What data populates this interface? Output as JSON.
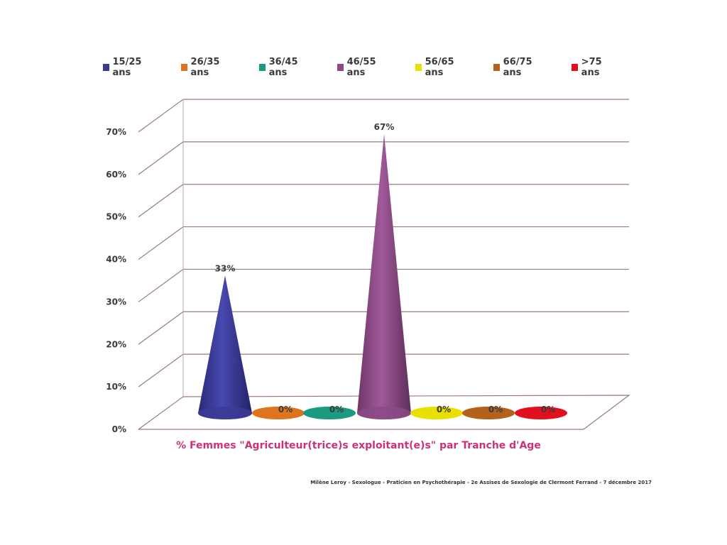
{
  "chart_data": {
    "type": "bar",
    "shape": "cone-3d",
    "categories": [
      "15/25 ans",
      "26/35 ans",
      "36/45 ans",
      "46/55 ans",
      "56/65 ans",
      "66/75 ans",
      ">75 ans"
    ],
    "values": [
      33,
      0,
      0,
      67,
      0,
      0,
      0
    ],
    "data_labels": [
      "33%",
      "0%",
      "0%",
      "67%",
      "0%",
      "0%",
      "0%"
    ],
    "colors": [
      "#3b3b96",
      "#e0741c",
      "#1a9a7e",
      "#8b4a85",
      "#e8e000",
      "#b5611e",
      "#e0101e"
    ],
    "ylim": [
      0,
      70
    ],
    "yticks": [
      0,
      10,
      20,
      30,
      40,
      50,
      60,
      70
    ],
    "ytick_labels": [
      "0%",
      "10%",
      "20%",
      "30%",
      "40%",
      "50%",
      "60%",
      "70%"
    ],
    "xlabel": "% Femmes \"Agriculteur(trice)s exploitant(e)s\" par Tranche d'Age",
    "legend_position": "top",
    "grid": true
  },
  "footer": "Milène Leroy - Sexologue - Praticien en Psychothérapie - 2e Assises de Sexologie de Clermont Ferrand - 7 décembre 2017"
}
